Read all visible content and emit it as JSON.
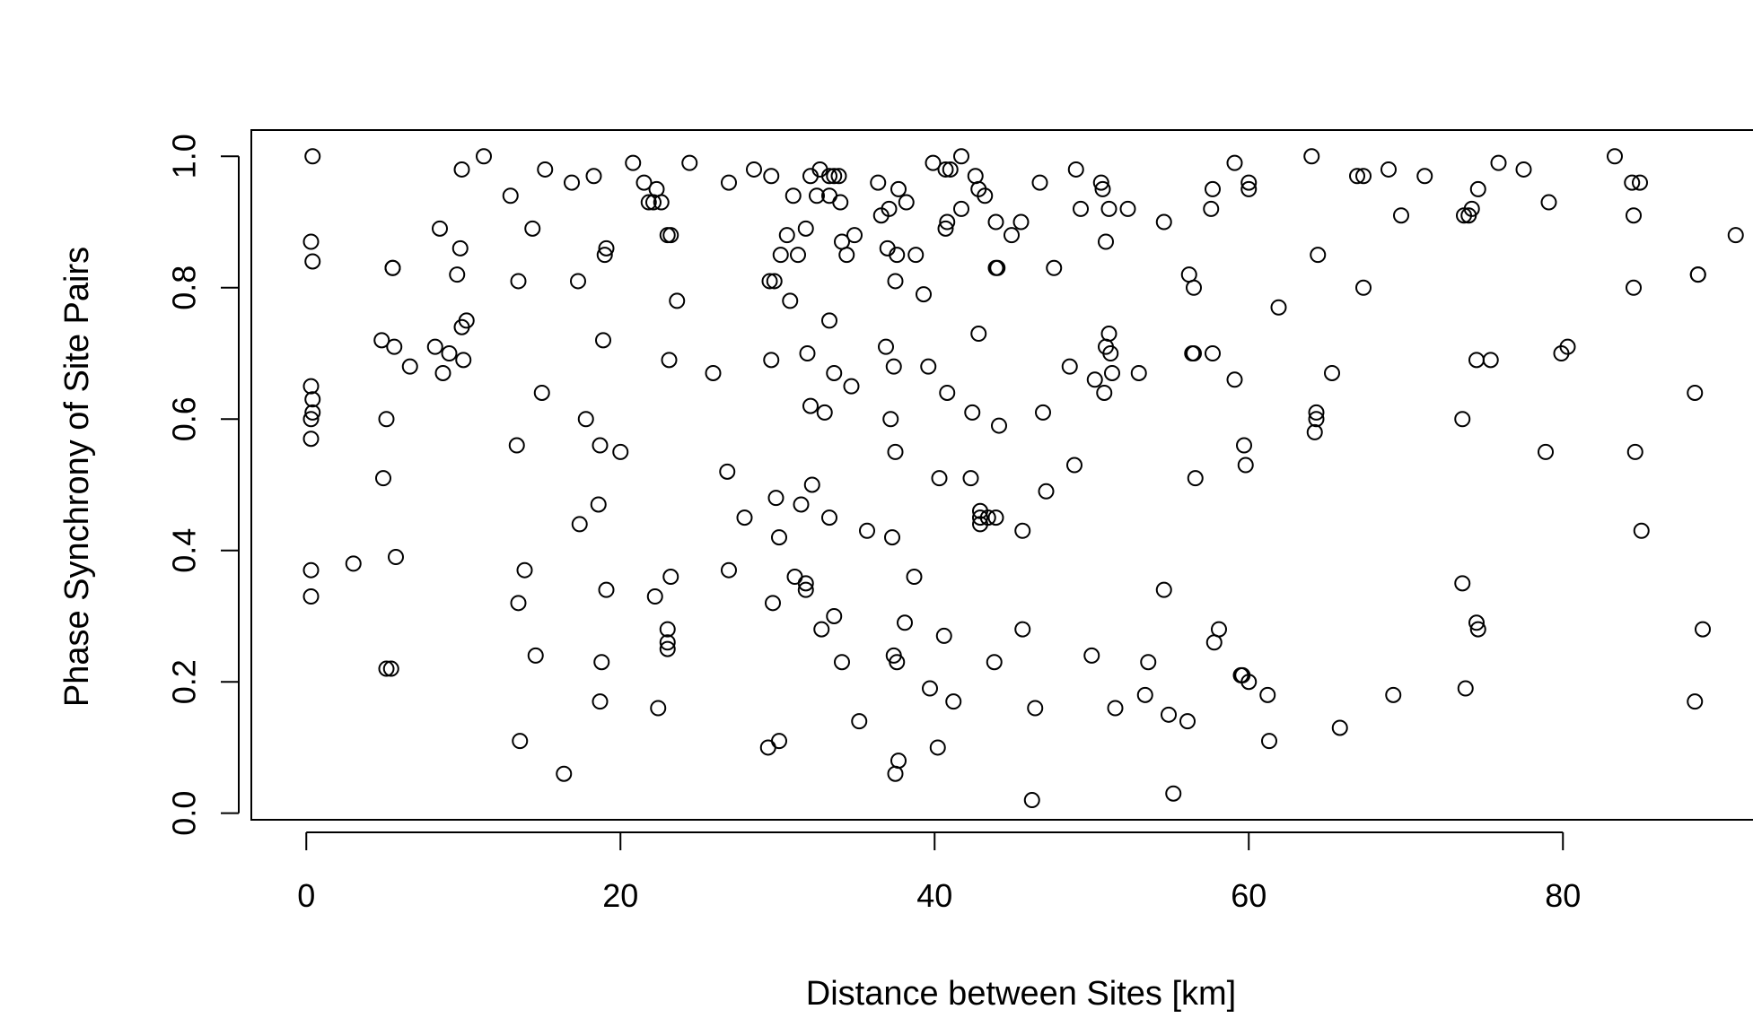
{
  "chart_data": {
    "type": "scatter",
    "title": "",
    "xlabel": "Distance between Sites [km]",
    "ylabel": "Phase Synchrony of Site Pairs",
    "xlim": [
      -3.5,
      92.5
    ],
    "ylim": [
      -0.01,
      1.04
    ],
    "x_ticks": [
      0,
      20,
      40,
      60,
      80
    ],
    "x_tick_labels": [
      "0",
      "20",
      "40",
      "60",
      "80"
    ],
    "y_ticks": [
      0.0,
      0.2,
      0.4,
      0.6,
      0.8,
      1.0
    ],
    "y_tick_labels": [
      "0.0",
      "0.2",
      "0.4",
      "0.6",
      "0.8",
      "1.0"
    ],
    "grid": false,
    "marker": "open-circle",
    "points": [
      [
        0.4,
        1.0
      ],
      [
        0.3,
        0.87
      ],
      [
        0.4,
        0.84
      ],
      [
        0.3,
        0.65
      ],
      [
        0.4,
        0.63
      ],
      [
        0.4,
        0.61
      ],
      [
        0.3,
        0.6
      ],
      [
        0.3,
        0.57
      ],
      [
        0.3,
        0.37
      ],
      [
        0.3,
        0.33
      ],
      [
        3.0,
        0.38
      ],
      [
        4.8,
        0.72
      ],
      [
        4.9,
        0.51
      ],
      [
        5.1,
        0.6
      ],
      [
        5.1,
        0.22
      ],
      [
        5.4,
        0.22
      ],
      [
        5.5,
        0.83
      ],
      [
        5.5,
        0.83
      ],
      [
        5.6,
        0.71
      ],
      [
        5.7,
        0.39
      ],
      [
        6.6,
        0.68
      ],
      [
        8.2,
        0.71
      ],
      [
        8.5,
        0.89
      ],
      [
        8.7,
        0.67
      ],
      [
        9.1,
        0.7
      ],
      [
        9.6,
        0.82
      ],
      [
        9.8,
        0.86
      ],
      [
        9.9,
        0.74
      ],
      [
        9.9,
        0.98
      ],
      [
        10.0,
        0.69
      ],
      [
        10.2,
        0.75
      ],
      [
        11.3,
        1.0
      ],
      [
        13.0,
        0.94
      ],
      [
        13.4,
        0.56
      ],
      [
        13.5,
        0.81
      ],
      [
        13.5,
        0.32
      ],
      [
        13.6,
        0.11
      ],
      [
        13.9,
        0.37
      ],
      [
        14.4,
        0.89
      ],
      [
        14.6,
        0.24
      ],
      [
        15.0,
        0.64
      ],
      [
        15.2,
        0.98
      ],
      [
        16.4,
        0.06
      ],
      [
        16.9,
        0.96
      ],
      [
        17.3,
        0.81
      ],
      [
        17.4,
        0.44
      ],
      [
        17.8,
        0.6
      ],
      [
        18.3,
        0.97
      ],
      [
        18.6,
        0.47
      ],
      [
        18.7,
        0.56
      ],
      [
        18.8,
        0.23
      ],
      [
        18.7,
        0.17
      ],
      [
        18.9,
        0.72
      ],
      [
        19.0,
        0.85
      ],
      [
        19.1,
        0.86
      ],
      [
        19.1,
        0.34
      ],
      [
        20.0,
        0.55
      ],
      [
        20.8,
        0.99
      ],
      [
        21.5,
        0.96
      ],
      [
        21.8,
        0.93
      ],
      [
        22.1,
        0.93
      ],
      [
        22.3,
        0.95
      ],
      [
        22.2,
        0.33
      ],
      [
        22.4,
        0.16
      ],
      [
        22.6,
        0.93
      ],
      [
        23.0,
        0.88
      ],
      [
        23.1,
        0.69
      ],
      [
        23.2,
        0.88
      ],
      [
        23.0,
        0.28
      ],
      [
        23.0,
        0.26
      ],
      [
        23.0,
        0.25
      ],
      [
        23.2,
        0.36
      ],
      [
        23.6,
        0.78
      ],
      [
        24.4,
        0.99
      ],
      [
        25.9,
        0.67
      ],
      [
        26.9,
        0.96
      ],
      [
        26.8,
        0.52
      ],
      [
        26.9,
        0.37
      ],
      [
        27.9,
        0.45
      ],
      [
        28.5,
        0.98
      ],
      [
        29.4,
        0.1
      ],
      [
        29.6,
        0.97
      ],
      [
        29.5,
        0.81
      ],
      [
        29.6,
        0.69
      ],
      [
        29.7,
        0.32
      ],
      [
        29.8,
        0.81
      ],
      [
        29.9,
        0.48
      ],
      [
        30.1,
        0.42
      ],
      [
        30.2,
        0.85
      ],
      [
        30.1,
        0.11
      ],
      [
        30.6,
        0.88
      ],
      [
        30.8,
        0.78
      ],
      [
        31.0,
        0.94
      ],
      [
        31.1,
        0.36
      ],
      [
        31.3,
        0.85
      ],
      [
        31.5,
        0.47
      ],
      [
        31.8,
        0.35
      ],
      [
        31.8,
        0.89
      ],
      [
        31.8,
        0.34
      ],
      [
        31.9,
        0.7
      ],
      [
        32.1,
        0.97
      ],
      [
        32.1,
        0.62
      ],
      [
        32.2,
        0.5
      ],
      [
        32.5,
        0.94
      ],
      [
        32.7,
        0.98
      ],
      [
        32.8,
        0.28
      ],
      [
        33.0,
        0.61
      ],
      [
        33.3,
        0.97
      ],
      [
        33.3,
        0.94
      ],
      [
        33.3,
        0.75
      ],
      [
        33.3,
        0.45
      ],
      [
        33.6,
        0.97
      ],
      [
        33.6,
        0.3
      ],
      [
        33.6,
        0.67
      ],
      [
        33.9,
        0.97
      ],
      [
        34.0,
        0.93
      ],
      [
        34.1,
        0.87
      ],
      [
        34.1,
        0.23
      ],
      [
        34.4,
        0.85
      ],
      [
        34.7,
        0.65
      ],
      [
        34.9,
        0.88
      ],
      [
        35.2,
        0.14
      ],
      [
        35.7,
        0.43
      ],
      [
        36.4,
        0.96
      ],
      [
        36.6,
        0.91
      ],
      [
        36.9,
        0.71
      ],
      [
        37.0,
        0.86
      ],
      [
        37.1,
        0.92
      ],
      [
        37.2,
        0.6
      ],
      [
        37.3,
        0.42
      ],
      [
        37.4,
        0.68
      ],
      [
        37.4,
        0.24
      ],
      [
        37.5,
        0.06
      ],
      [
        37.6,
        0.23
      ],
      [
        37.7,
        0.08
      ],
      [
        37.5,
        0.55
      ],
      [
        37.5,
        0.81
      ],
      [
        37.7,
        0.95
      ],
      [
        37.6,
        0.85
      ],
      [
        38.1,
        0.29
      ],
      [
        38.2,
        0.93
      ],
      [
        38.7,
        0.36
      ],
      [
        38.8,
        0.85
      ],
      [
        39.3,
        0.79
      ],
      [
        39.6,
        0.68
      ],
      [
        39.7,
        0.19
      ],
      [
        39.9,
        0.99
      ],
      [
        40.2,
        0.1
      ],
      [
        40.3,
        0.51
      ],
      [
        40.6,
        0.27
      ],
      [
        40.7,
        0.98
      ],
      [
        40.7,
        0.89
      ],
      [
        40.8,
        0.64
      ],
      [
        40.8,
        0.9
      ],
      [
        41.0,
        0.98
      ],
      [
        41.2,
        0.17
      ],
      [
        41.7,
        1.0
      ],
      [
        41.7,
        0.92
      ],
      [
        42.3,
        0.51
      ],
      [
        42.4,
        0.61
      ],
      [
        42.6,
        0.97
      ],
      [
        42.8,
        0.95
      ],
      [
        42.8,
        0.73
      ],
      [
        42.9,
        0.46
      ],
      [
        42.9,
        0.44
      ],
      [
        42.9,
        0.45
      ],
      [
        43.2,
        0.94
      ],
      [
        43.4,
        0.45
      ],
      [
        43.8,
        0.23
      ],
      [
        43.9,
        0.45
      ],
      [
        43.9,
        0.9
      ],
      [
        43.9,
        0.83
      ],
      [
        44.0,
        0.83
      ],
      [
        44.1,
        0.59
      ],
      [
        44.9,
        0.88
      ],
      [
        45.5,
        0.9
      ],
      [
        45.6,
        0.43
      ],
      [
        45.6,
        0.28
      ],
      [
        46.2,
        0.02
      ],
      [
        46.4,
        0.16
      ],
      [
        46.7,
        0.96
      ],
      [
        46.9,
        0.61
      ],
      [
        47.1,
        0.49
      ],
      [
        47.6,
        0.83
      ],
      [
        48.6,
        0.68
      ],
      [
        48.9,
        0.53
      ],
      [
        49.0,
        0.98
      ],
      [
        49.3,
        0.92
      ],
      [
        50.0,
        0.24
      ],
      [
        50.2,
        0.66
      ],
      [
        50.6,
        0.96
      ],
      [
        50.7,
        0.95
      ],
      [
        50.9,
        0.87
      ],
      [
        50.8,
        0.64
      ],
      [
        50.9,
        0.71
      ],
      [
        51.1,
        0.73
      ],
      [
        51.1,
        0.92
      ],
      [
        51.2,
        0.7
      ],
      [
        51.3,
        0.67
      ],
      [
        51.5,
        0.16
      ],
      [
        52.3,
        0.92
      ],
      [
        53.0,
        0.67
      ],
      [
        53.4,
        0.18
      ],
      [
        53.6,
        0.23
      ],
      [
        54.6,
        0.9
      ],
      [
        54.6,
        0.34
      ],
      [
        54.9,
        0.15
      ],
      [
        55.2,
        0.03
      ],
      [
        56.2,
        0.82
      ],
      [
        56.1,
        0.14
      ],
      [
        56.4,
        0.7
      ],
      [
        56.5,
        0.8
      ],
      [
        56.5,
        0.7
      ],
      [
        56.6,
        0.51
      ],
      [
        57.7,
        0.7
      ],
      [
        57.8,
        0.26
      ],
      [
        57.6,
        0.92
      ],
      [
        57.7,
        0.95
      ],
      [
        58.1,
        0.28
      ],
      [
        59.1,
        0.66
      ],
      [
        59.1,
        0.99
      ],
      [
        59.5,
        0.21
      ],
      [
        59.6,
        0.21
      ],
      [
        59.7,
        0.56
      ],
      [
        59.8,
        0.53
      ],
      [
        60.0,
        0.96
      ],
      [
        60.0,
        0.2
      ],
      [
        60.0,
        0.95
      ],
      [
        61.2,
        0.18
      ],
      [
        61.3,
        0.11
      ],
      [
        61.9,
        0.77
      ],
      [
        64.0,
        1.0
      ],
      [
        64.2,
        0.58
      ],
      [
        64.3,
        0.6
      ],
      [
        64.3,
        0.61
      ],
      [
        64.4,
        0.85
      ],
      [
        65.3,
        0.67
      ],
      [
        65.8,
        0.13
      ],
      [
        66.9,
        0.97
      ],
      [
        67.3,
        0.97
      ],
      [
        67.3,
        0.8
      ],
      [
        68.9,
        0.98
      ],
      [
        69.2,
        0.18
      ],
      [
        69.7,
        0.91
      ],
      [
        71.2,
        0.97
      ],
      [
        73.6,
        0.6
      ],
      [
        73.6,
        0.35
      ],
      [
        73.7,
        0.91
      ],
      [
        73.8,
        0.19
      ],
      [
        74.0,
        0.91
      ],
      [
        74.2,
        0.92
      ],
      [
        74.5,
        0.69
      ],
      [
        74.5,
        0.29
      ],
      [
        74.6,
        0.28
      ],
      [
        74.6,
        0.95
      ],
      [
        75.4,
        0.69
      ],
      [
        75.9,
        0.99
      ],
      [
        77.5,
        0.98
      ],
      [
        78.9,
        0.55
      ],
      [
        79.1,
        0.93
      ],
      [
        79.9,
        0.7
      ],
      [
        80.3,
        0.71
      ],
      [
        83.3,
        1.0
      ],
      [
        84.6,
        0.55
      ],
      [
        84.5,
        0.91
      ],
      [
        84.4,
        0.96
      ],
      [
        84.5,
        0.8
      ],
      [
        84.9,
        0.96
      ],
      [
        85.0,
        0.43
      ],
      [
        88.4,
        0.64
      ],
      [
        88.4,
        0.17
      ],
      [
        88.6,
        0.82
      ],
      [
        88.6,
        0.82
      ],
      [
        88.9,
        0.28
      ],
      [
        91.0,
        0.88
      ]
    ]
  }
}
